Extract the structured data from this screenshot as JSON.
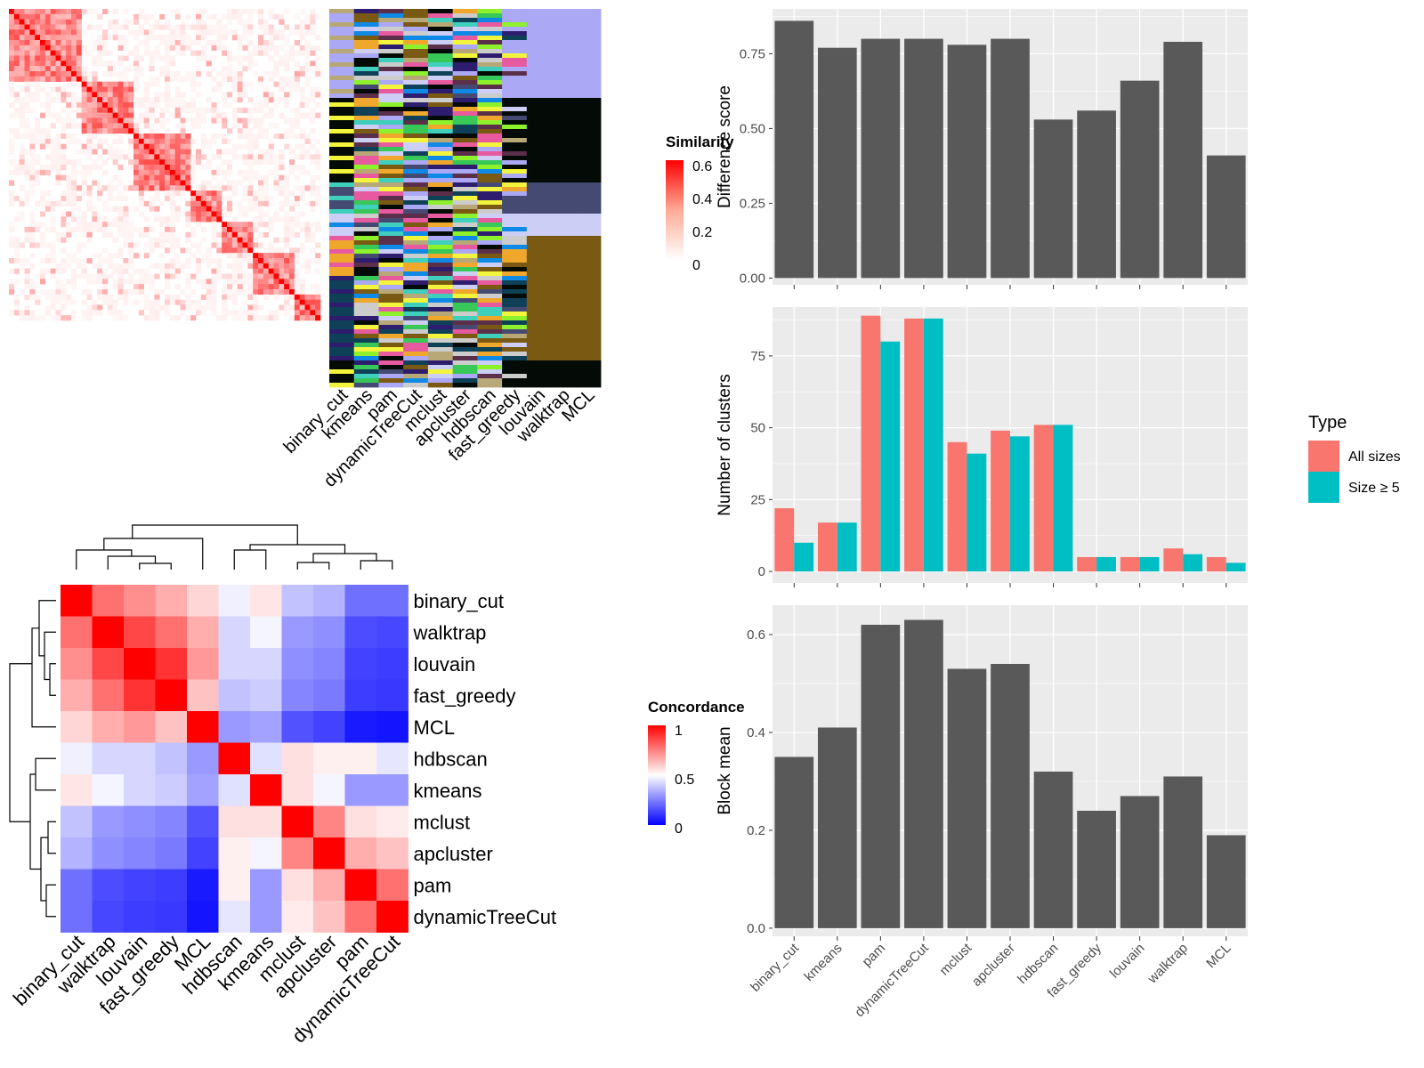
{
  "colors": {
    "panel_bg": "#EBEBEB",
    "grid": "#FFFFFF",
    "bar_fill": "#595959",
    "all_sizes": "#F8766D",
    "size_ge5": "#00BFC4",
    "sim_high": "#FF0000",
    "sim_low": "#FFFFFF",
    "conc_low": "#0000FF",
    "conc_mid": "#FFFFFF",
    "conc_high": "#FF0000"
  },
  "similarity_legend": {
    "title": "Similarity",
    "ticks": [
      "0.6",
      "0.4",
      "0.2",
      "0"
    ]
  },
  "membership_columns": [
    "binary_cut",
    "kmeans",
    "pam",
    "dynamicTreeCut",
    "mclust",
    "apcluster",
    "hdbscan",
    "fast_greedy",
    "louvain",
    "walktrap",
    "MCL"
  ],
  "concordance": {
    "legend_title": "Concordance",
    "legend_ticks": [
      "1",
      "0.5",
      "0"
    ],
    "methods": [
      "binary_cut",
      "walktrap",
      "louvain",
      "fast_greedy",
      "MCL",
      "hdbscan",
      "kmeans",
      "mclust",
      "apcluster",
      "pam",
      "dynamicTreeCut"
    ],
    "matrix": [
      [
        1.0,
        0.78,
        0.72,
        0.66,
        0.58,
        0.47,
        0.55,
        0.38,
        0.35,
        0.22,
        0.22
      ],
      [
        0.78,
        1.0,
        0.86,
        0.78,
        0.66,
        0.42,
        0.48,
        0.3,
        0.28,
        0.15,
        0.14
      ],
      [
        0.72,
        0.86,
        1.0,
        0.9,
        0.7,
        0.42,
        0.42,
        0.28,
        0.26,
        0.13,
        0.12
      ],
      [
        0.66,
        0.78,
        0.9,
        1.0,
        0.62,
        0.38,
        0.4,
        0.26,
        0.24,
        0.12,
        0.11
      ],
      [
        0.58,
        0.66,
        0.7,
        0.62,
        1.0,
        0.3,
        0.32,
        0.16,
        0.13,
        0.05,
        0.04
      ],
      [
        0.47,
        0.42,
        0.42,
        0.38,
        0.3,
        1.0,
        0.44,
        0.56,
        0.53,
        0.53,
        0.45
      ],
      [
        0.55,
        0.48,
        0.42,
        0.4,
        0.32,
        0.44,
        1.0,
        0.56,
        0.48,
        0.3,
        0.3
      ],
      [
        0.38,
        0.3,
        0.28,
        0.26,
        0.16,
        0.56,
        0.56,
        1.0,
        0.74,
        0.56,
        0.54
      ],
      [
        0.35,
        0.28,
        0.26,
        0.24,
        0.13,
        0.53,
        0.48,
        0.74,
        1.0,
        0.66,
        0.62
      ],
      [
        0.22,
        0.15,
        0.13,
        0.12,
        0.05,
        0.53,
        0.3,
        0.56,
        0.66,
        1.0,
        0.78
      ],
      [
        0.22,
        0.14,
        0.12,
        0.11,
        0.04,
        0.45,
        0.3,
        0.54,
        0.62,
        0.78,
        1.0
      ]
    ]
  },
  "chart_data": [
    {
      "type": "bar",
      "ylabel": "Difference score",
      "categories": [
        "binary_cut",
        "kmeans",
        "pam",
        "dynamicTreeCut",
        "mclust",
        "apcluster",
        "hdbscan",
        "fast_greedy",
        "louvain",
        "walktrap",
        "MCL"
      ],
      "values": [
        0.86,
        0.77,
        0.8,
        0.8,
        0.78,
        0.8,
        0.53,
        0.56,
        0.66,
        0.79,
        0.41
      ],
      "ylim": [
        0,
        0.9
      ],
      "yticks": [
        "0.00",
        "0.25",
        "0.50",
        "0.75"
      ],
      "ytick_values": [
        0,
        0.25,
        0.5,
        0.75
      ]
    },
    {
      "type": "bar",
      "ylabel": "Number of clusters",
      "categories": [
        "binary_cut",
        "kmeans",
        "pam",
        "dynamicTreeCut",
        "mclust",
        "apcluster",
        "hdbscan",
        "fast_greedy",
        "louvain",
        "walktrap",
        "MCL"
      ],
      "legend_title": "Type",
      "legend_position": "right",
      "series": [
        {
          "name": "All sizes",
          "values": [
            22,
            17,
            89,
            88,
            45,
            49,
            51,
            5,
            5,
            8,
            5
          ]
        },
        {
          "name": "Size ≥ 5",
          "values": [
            10,
            17,
            80,
            88,
            41,
            47,
            51,
            5,
            5,
            6,
            3
          ]
        }
      ],
      "ylim": [
        0,
        92
      ],
      "yticks": [
        "0",
        "25",
        "50",
        "75"
      ],
      "ytick_values": [
        0,
        25,
        50,
        75
      ]
    },
    {
      "type": "bar",
      "ylabel": "Block mean",
      "categories": [
        "binary_cut",
        "kmeans",
        "pam",
        "dynamicTreeCut",
        "mclust",
        "apcluster",
        "hdbscan",
        "fast_greedy",
        "louvain",
        "walktrap",
        "MCL"
      ],
      "values": [
        0.35,
        0.41,
        0.62,
        0.63,
        0.53,
        0.54,
        0.32,
        0.24,
        0.27,
        0.31,
        0.19
      ],
      "ylim": [
        0,
        0.66
      ],
      "yticks": [
        "0.0",
        "0.2",
        "0.4",
        "0.6"
      ],
      "ytick_values": [
        0,
        0.2,
        0.4,
        0.6
      ]
    }
  ]
}
